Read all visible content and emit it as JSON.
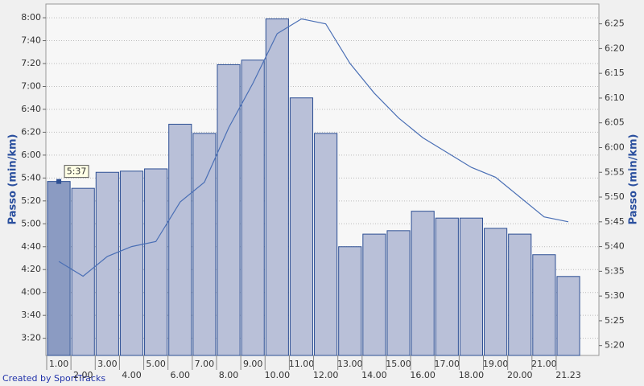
{
  "chart_data": {
    "type": "bar",
    "y_label": "Passo (min/km)",
    "y2_label": "Passo (min/km)",
    "credit": "Created by SportTracks",
    "annotation": "5:37",
    "categories": [
      "1.00",
      "2.00",
      "3.00",
      "4.00",
      "5.00",
      "6.00",
      "7.00",
      "8.00",
      "9.00",
      "10.00",
      "11.00",
      "12.00",
      "13.00",
      "14.00",
      "15.00",
      "16.00",
      "17.00",
      "18.00",
      "19.00",
      "20.00",
      "21.00",
      "21.23"
    ],
    "series": [
      {
        "type": "bar",
        "color": "#b9c0d8",
        "highlight_color": "#8b9bc2",
        "values": [
          337,
          331,
          345,
          346,
          348,
          387,
          379,
          439,
          443,
          479,
          410,
          379,
          280,
          291,
          294,
          311,
          305,
          305,
          296,
          291,
          273,
          254
        ]
      },
      {
        "type": "line",
        "axis": "y2",
        "color": "#4a6fb5",
        "values": [
          337,
          334,
          338,
          340,
          341,
          349,
          353,
          364,
          373,
          383,
          386,
          385,
          377,
          371,
          366,
          362,
          359,
          356,
          354,
          350,
          346,
          345
        ]
      }
    ],
    "ylim": [
      185,
      492
    ],
    "yticks": [
      {
        "value": 200,
        "label": "3:20"
      },
      {
        "value": 220,
        "label": "3:40"
      },
      {
        "value": 240,
        "label": "4:00"
      },
      {
        "value": 260,
        "label": "4:20"
      },
      {
        "value": 280,
        "label": "4:40"
      },
      {
        "value": 300,
        "label": "5:00"
      },
      {
        "value": 320,
        "label": "5:20"
      },
      {
        "value": 340,
        "label": "5:40"
      },
      {
        "value": 360,
        "label": "6:00"
      },
      {
        "value": 380,
        "label": "6:20"
      },
      {
        "value": 400,
        "label": "6:40"
      },
      {
        "value": 420,
        "label": "7:00"
      },
      {
        "value": 440,
        "label": "7:20"
      },
      {
        "value": 460,
        "label": "7:40"
      },
      {
        "value": 480,
        "label": "8:00"
      }
    ],
    "y2lim": [
      318,
      389
    ],
    "y2ticks": [
      {
        "value": 320,
        "label": "5:20"
      },
      {
        "value": 325,
        "label": "5:25"
      },
      {
        "value": 330,
        "label": "5:30"
      },
      {
        "value": 335,
        "label": "5:35"
      },
      {
        "value": 340,
        "label": "5:40"
      },
      {
        "value": 345,
        "label": "5:45"
      },
      {
        "value": 350,
        "label": "5:50"
      },
      {
        "value": 355,
        "label": "5:55"
      },
      {
        "value": 360,
        "label": "6:00"
      },
      {
        "value": 365,
        "label": "6:05"
      },
      {
        "value": 370,
        "label": "6:10"
      },
      {
        "value": 375,
        "label": "6:15"
      },
      {
        "value": 380,
        "label": "6:20"
      },
      {
        "value": 385,
        "label": "6:25"
      }
    ],
    "grid": true
  }
}
